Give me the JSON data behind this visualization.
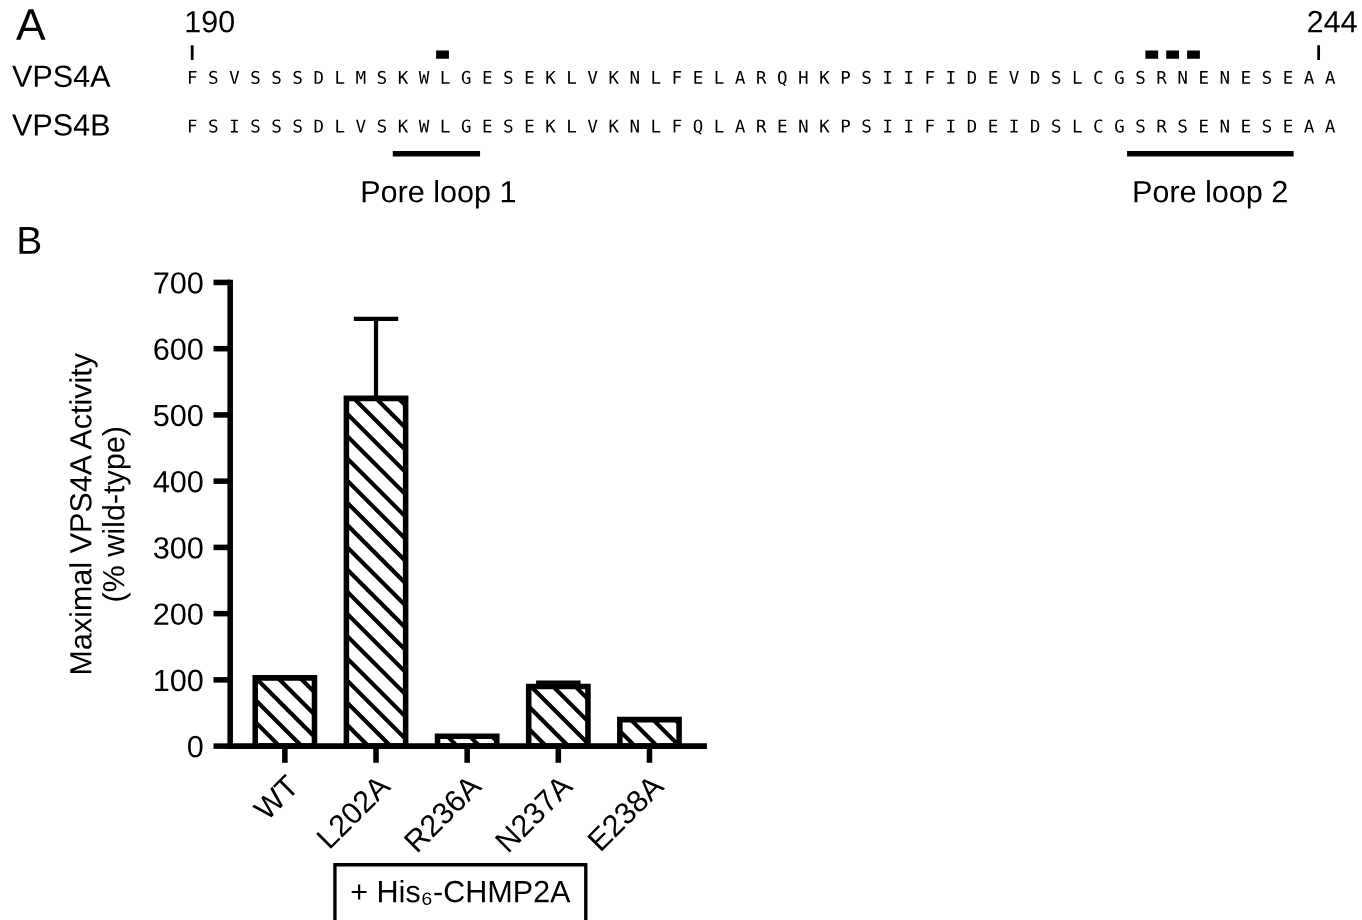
{
  "chart_data": [
    {
      "type": "other",
      "annotations": [
        "A",
        "190",
        "244",
        "VPS4A",
        "VPS4B",
        "F S V S S S D L M S K W L G E S E K L V K N L F E L A R Q H K P S I I F I D E V D S L C G S R N E N E S E A A",
        "F S I S S S D L V S K W L G E S E K L V K N L F Q L A R E N K P S I I F I D E I D S L C G S R S E N E S E A A",
        "Pore loop 1",
        "Pore loop 2"
      ]
    },
    {
      "type": "bar",
      "categories": [
        "WT",
        "L202A",
        "R236A",
        "N237A",
        "E238A"
      ],
      "values": [
        103,
        525,
        15,
        90,
        40
      ],
      "errors": [
        null,
        120,
        null,
        6,
        null
      ],
      "color": "#000000",
      "ylabel": "Maximal VPS4A Activity\n(% wild-type)",
      "ylim": [
        0,
        700
      ],
      "yticks": [
        0,
        100,
        200,
        300,
        400,
        500,
        600,
        700
      ],
      "grid": false,
      "annotations": [
        "B",
        "+ His₆-CHMP2A"
      ]
    }
  ]
}
